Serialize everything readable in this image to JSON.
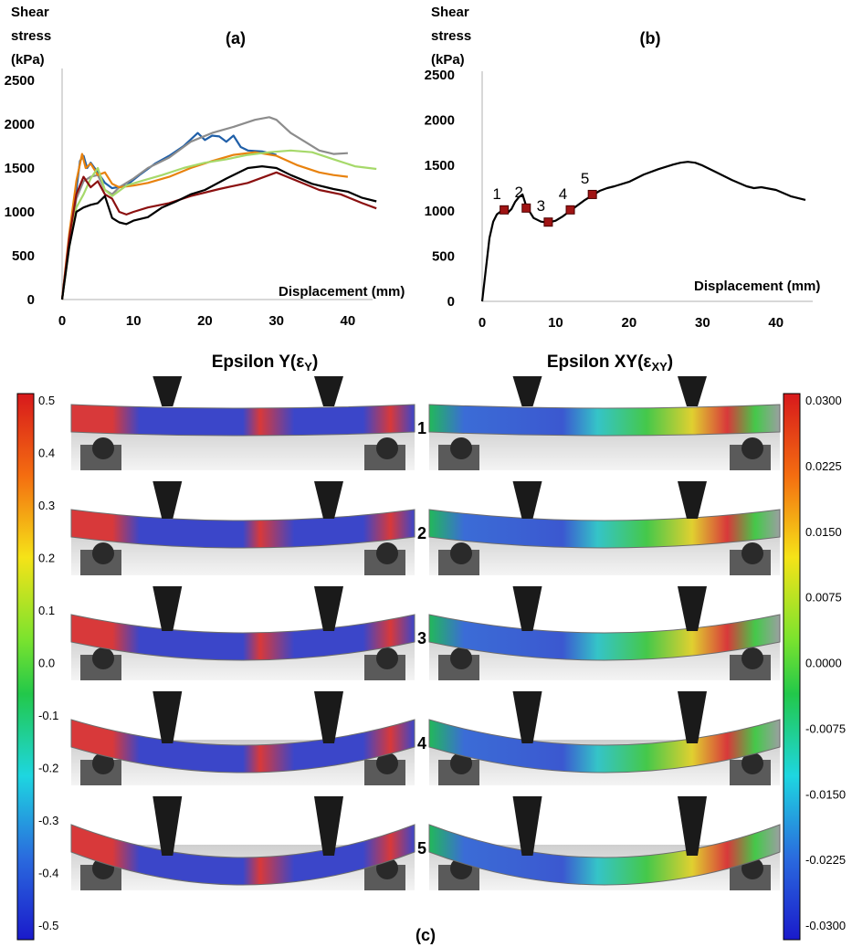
{
  "chart_data": [
    {
      "type": "line",
      "panel_label": "(a)",
      "ylabel_lines": [
        "Shear",
        "stress",
        "(kPa)"
      ],
      "xlabel": "Displacement (mm)",
      "xlim": [
        0,
        45
      ],
      "ylim": [
        0,
        2500
      ],
      "xticks": [
        "0",
        "10",
        "20",
        "30",
        "40"
      ],
      "yticks": [
        "0",
        "500",
        "1000",
        "1500",
        "2000",
        "2500"
      ],
      "grid": false,
      "legend": "none",
      "series": [
        {
          "color": "#1f5fa8",
          "x": [
            0,
            1,
            2,
            2.5,
            3,
            3.5,
            4,
            5,
            6,
            7,
            9,
            11,
            13,
            15,
            17,
            19,
            20,
            21,
            22,
            23,
            24,
            25,
            26,
            28,
            30
          ],
          "y": [
            0,
            700,
            1250,
            1580,
            1640,
            1500,
            1560,
            1450,
            1330,
            1270,
            1300,
            1430,
            1550,
            1640,
            1750,
            1900,
            1820,
            1870,
            1860,
            1800,
            1870,
            1740,
            1700,
            1690,
            1650
          ]
        },
        {
          "color": "#8c8c8c",
          "x": [
            0,
            1,
            2,
            3,
            4,
            5,
            6,
            7,
            8,
            10,
            12,
            15,
            18,
            21,
            24,
            27,
            29,
            30,
            32,
            34,
            36,
            38,
            40
          ],
          "y": [
            0,
            650,
            1150,
            1350,
            1400,
            1420,
            1250,
            1200,
            1280,
            1380,
            1500,
            1620,
            1800,
            1900,
            1970,
            2050,
            2080,
            2050,
            1900,
            1800,
            1700,
            1660,
            1670
          ]
        },
        {
          "color": "#e8820e",
          "x": [
            0,
            1,
            2,
            2.8,
            3.3,
            4,
            5,
            6,
            7,
            8,
            10,
            12,
            15,
            18,
            21,
            24,
            27,
            30,
            33,
            36,
            38,
            40
          ],
          "y": [
            0,
            750,
            1350,
            1660,
            1500,
            1550,
            1420,
            1450,
            1320,
            1280,
            1300,
            1330,
            1400,
            1500,
            1580,
            1650,
            1680,
            1640,
            1530,
            1450,
            1420,
            1400
          ]
        },
        {
          "color": "#a6d96a",
          "x": [
            0,
            1,
            2,
            3,
            4,
            5,
            6,
            7,
            9,
            11,
            14,
            17,
            20,
            23,
            26,
            29,
            32,
            35,
            38,
            41,
            44
          ],
          "y": [
            0,
            600,
            1050,
            1200,
            1380,
            1500,
            1250,
            1180,
            1300,
            1350,
            1420,
            1500,
            1560,
            1600,
            1650,
            1680,
            1700,
            1680,
            1600,
            1520,
            1490
          ]
        },
        {
          "color": "#8b1010",
          "x": [
            0,
            1,
            2,
            3,
            4,
            5,
            6,
            7,
            8,
            9,
            10,
            12,
            15,
            18,
            22,
            26,
            30,
            33,
            36,
            39,
            42,
            44
          ],
          "y": [
            0,
            700,
            1200,
            1400,
            1280,
            1350,
            1200,
            1150,
            1000,
            970,
            1000,
            1050,
            1100,
            1180,
            1260,
            1330,
            1450,
            1350,
            1250,
            1200,
            1100,
            1040
          ]
        },
        {
          "color": "#000000",
          "x": [
            0,
            1,
            2,
            3,
            4,
            5,
            6,
            7,
            8,
            9,
            10,
            12,
            14,
            16,
            18,
            20,
            23,
            26,
            28,
            30,
            32,
            35,
            38,
            40,
            42,
            44
          ],
          "y": [
            0,
            600,
            1000,
            1050,
            1080,
            1100,
            1180,
            930,
            880,
            860,
            900,
            940,
            1050,
            1120,
            1200,
            1250,
            1380,
            1500,
            1520,
            1500,
            1420,
            1320,
            1260,
            1230,
            1160,
            1120
          ]
        }
      ]
    },
    {
      "type": "line",
      "panel_label": "(b)",
      "ylabel_lines": [
        "Shear",
        "stress",
        "(kPa)"
      ],
      "xlabel": "Displacement (mm)",
      "xlim": [
        0,
        45
      ],
      "ylim": [
        0,
        2500
      ],
      "xticks": [
        "0",
        "10",
        "20",
        "30",
        "40"
      ],
      "yticks": [
        "0",
        "500",
        "1000",
        "1500",
        "2000",
        "2500"
      ],
      "grid": false,
      "legend": "none",
      "series": [
        {
          "color": "#000000",
          "x": [
            0,
            0.5,
            1,
            1.5,
            2,
            2.5,
            3,
            3.5,
            4,
            4.5,
            5,
            5.5,
            6,
            7,
            8,
            9,
            10,
            11,
            12,
            13,
            14,
            15,
            16,
            17,
            18,
            20,
            22,
            24,
            26,
            27,
            28,
            29,
            30,
            32,
            34,
            36,
            37,
            38,
            40,
            42,
            44
          ],
          "y": [
            0,
            350,
            700,
            880,
            960,
            990,
            1010,
            980,
            1020,
            1100,
            1150,
            1180,
            1050,
            920,
            880,
            870,
            890,
            940,
            1000,
            1060,
            1120,
            1170,
            1220,
            1250,
            1270,
            1320,
            1400,
            1460,
            1510,
            1530,
            1540,
            1530,
            1500,
            1420,
            1340,
            1270,
            1250,
            1260,
            1230,
            1160,
            1120
          ]
        }
      ],
      "markers": [
        {
          "label": "1",
          "x": 3,
          "y": 1010
        },
        {
          "label": "2",
          "x": 6,
          "y": 1030
        },
        {
          "label": "3",
          "x": 9,
          "y": 875
        },
        {
          "label": "4",
          "x": 12,
          "y": 1010
        },
        {
          "label": "5",
          "x": 15,
          "y": 1180
        }
      ]
    },
    {
      "type": "heatmap",
      "panel_label": "(c)",
      "columns": [
        {
          "title": "Epsilon Y(ε",
          "subscript": "Y",
          "close": ")"
        },
        {
          "title": "Epsilon XY(ε",
          "subscript": "XY",
          "close": ")"
        }
      ],
      "rows": [
        "1",
        "2",
        "3",
        "4",
        "5"
      ],
      "colorbar_left": {
        "ticks": [
          "0.5",
          "0.4",
          "0.3",
          "0.2",
          "0.1",
          "0.0",
          "-0.1",
          "-0.2",
          "-0.3",
          "-0.4",
          "-0.5"
        ]
      },
      "colorbar_right": {
        "ticks": [
          "0.0300",
          "0.0225",
          "0.0150",
          "0.0075",
          "0.0000",
          "-0.0075",
          "-0.0150",
          "-0.0225",
          "-0.0300"
        ]
      }
    }
  ]
}
